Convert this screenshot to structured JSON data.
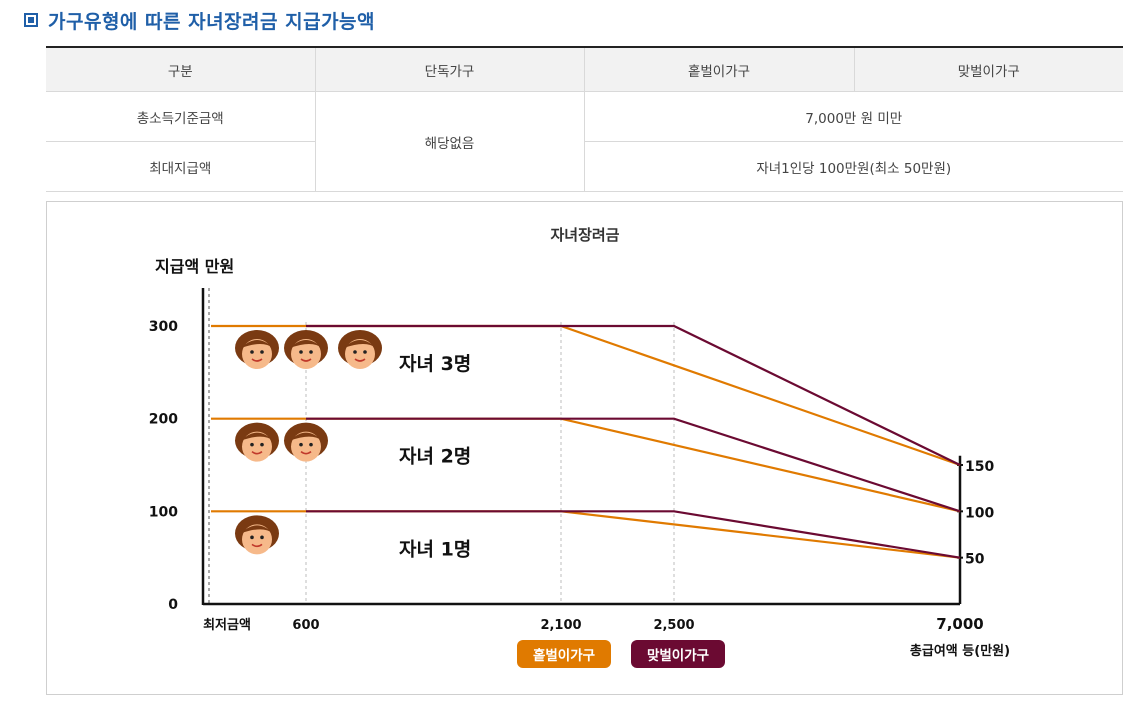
{
  "heading": {
    "title": "가구유형에 따른 자녀장려금 지급가능액"
  },
  "table": {
    "headers": [
      "구분",
      "단독가구",
      "홑벌이가구",
      "맞벌이가구"
    ],
    "rows": [
      {
        "label": "총소득기준금액",
        "single": "해당없음",
        "multi": "7,000만 원 미만"
      },
      {
        "label": "최대지급액",
        "multi": "자녀1인당 100만원(최소 50만원)"
      }
    ]
  },
  "chart_data": {
    "type": "line",
    "title": "자녀장려금",
    "ylabel": "지급액 만원",
    "xlabel": "총급여액 등(만원)",
    "x_ticks": [
      {
        "x": 0,
        "label": "최저금액"
      },
      {
        "x": 600,
        "label": "600"
      },
      {
        "x": 2100,
        "label": "2,100"
      },
      {
        "x": 2500,
        "label": "2,500"
      },
      {
        "x": 7000,
        "label": "7,000"
      }
    ],
    "y_ticks_left": [
      0,
      100,
      200,
      300
    ],
    "y_ticks_right": [
      50,
      100,
      150
    ],
    "xlim": [
      0,
      7000
    ],
    "ylim": [
      0,
      300
    ],
    "series": [
      {
        "name": "홑벌이가구",
        "color": "#e07a00",
        "group": "자녀 1명",
        "points": [
          [
            0,
            100
          ],
          [
            2100,
            100
          ],
          [
            7000,
            50
          ]
        ]
      },
      {
        "name": "홑벌이가구",
        "color": "#e07a00",
        "group": "자녀 2명",
        "points": [
          [
            0,
            200
          ],
          [
            2100,
            200
          ],
          [
            7000,
            100
          ]
        ]
      },
      {
        "name": "홑벌이가구",
        "color": "#e07a00",
        "group": "자녀 3명",
        "points": [
          [
            0,
            300
          ],
          [
            2100,
            300
          ],
          [
            7000,
            150
          ]
        ]
      },
      {
        "name": "맞벌이가구",
        "color": "#6b0a32",
        "group": "자녀 1명",
        "points": [
          [
            600,
            100
          ],
          [
            2500,
            100
          ],
          [
            7000,
            50
          ]
        ]
      },
      {
        "name": "맞벌이가구",
        "color": "#6b0a32",
        "group": "자녀 2명",
        "points": [
          [
            600,
            200
          ],
          [
            2500,
            200
          ],
          [
            7000,
            100
          ]
        ]
      },
      {
        "name": "맞벌이가구",
        "color": "#6b0a32",
        "group": "자녀 3명",
        "points": [
          [
            600,
            300
          ],
          [
            2500,
            300
          ],
          [
            7000,
            150
          ]
        ]
      }
    ],
    "annotations": [
      {
        "text": "자녀 1명",
        "children": 1
      },
      {
        "text": "자녀 2명",
        "children": 2
      },
      {
        "text": "자녀 3명",
        "children": 3
      }
    ],
    "legend": [
      {
        "name": "홑벌이가구",
        "color": "#e07a00"
      },
      {
        "name": "맞벌이가구",
        "color": "#6b0a32"
      }
    ],
    "legend_position": "bottom-center",
    "grid": false
  }
}
